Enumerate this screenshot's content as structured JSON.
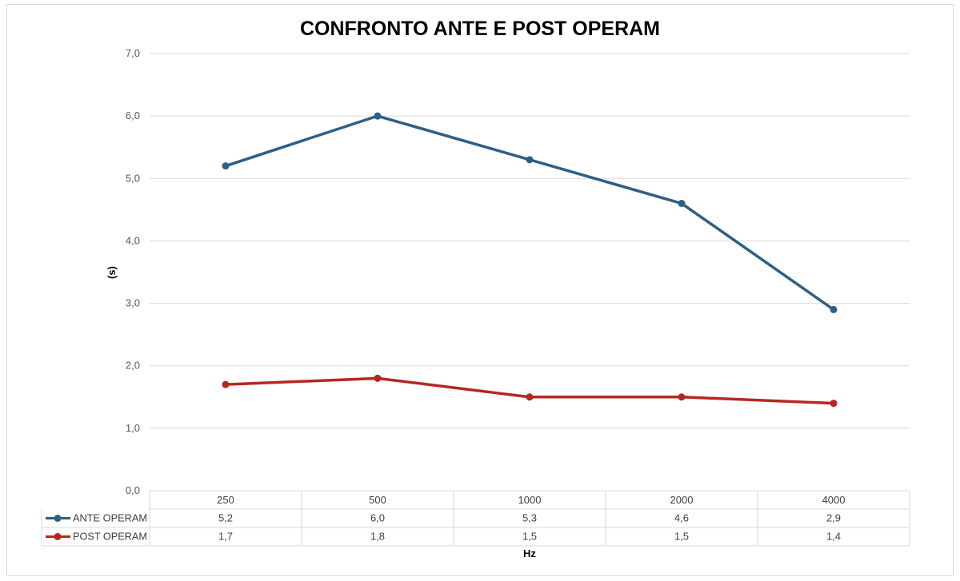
{
  "chart_data": {
    "type": "line",
    "title": "CONFRONTO ANTE E POST OPERAM",
    "xlabel": "Hz",
    "ylabel": "(s)",
    "categories": [
      "250",
      "500",
      "1000",
      "2000",
      "4000"
    ],
    "ylim": [
      0,
      7
    ],
    "yticks": [
      "0,0",
      "1,0",
      "2,0",
      "3,0",
      "4,0",
      "5,0",
      "6,0",
      "7,0"
    ],
    "grid": true,
    "legend": "data-table",
    "series": [
      {
        "name": "ANTE OPERAM",
        "color": "#2e5f84",
        "values": [
          5.2,
          6.0,
          5.3,
          4.6,
          2.9
        ],
        "labels": [
          "5,2",
          "6,0",
          "5,3",
          "4,6",
          "2,9"
        ]
      },
      {
        "name": "POST OPERAM",
        "color": "#b5281f",
        "values": [
          1.7,
          1.8,
          1.5,
          1.5,
          1.4
        ],
        "labels": [
          "1,7",
          "1,8",
          "1,5",
          "1,5",
          "1,4"
        ]
      }
    ]
  }
}
